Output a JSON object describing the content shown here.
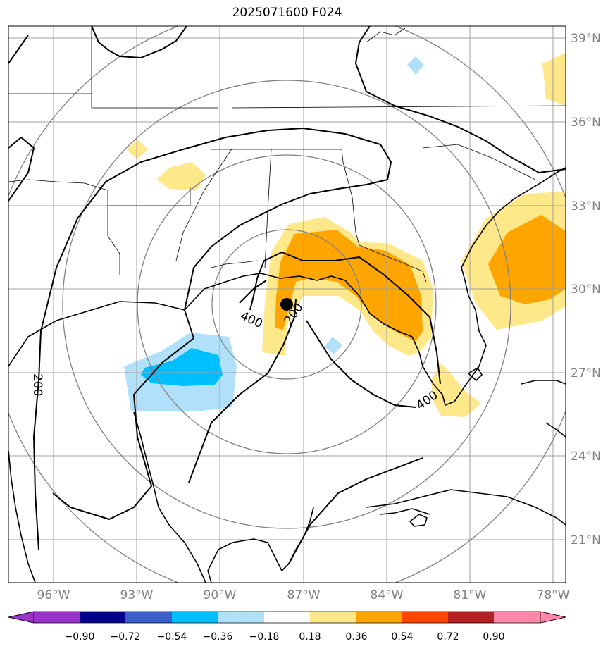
{
  "title": "2025071600 F024",
  "map": {
    "lon_labels": [
      "96°W",
      "93°W",
      "90°W",
      "87°W",
      "84°W",
      "81°W",
      "78°W"
    ],
    "lat_labels": [
      "39°N",
      "36°N",
      "33°N",
      "30°N",
      "27°N",
      "24°N",
      "21°N"
    ],
    "contour_labels": [
      "200",
      "400",
      "200",
      "400"
    ],
    "center_marker": "storm-center",
    "colors": {
      "grid": "#a0a0a0",
      "range_rings": "#808080",
      "coast": "#000000"
    }
  },
  "colorbar": {
    "ticks": [
      "−0.90",
      "−0.72",
      "−0.54",
      "−0.36",
      "−0.18",
      "0.18",
      "0.36",
      "0.54",
      "0.72",
      "0.90"
    ],
    "colors": [
      "#9933cc",
      "#00008b",
      "#3a5fcd",
      "#00bfff",
      "#b0e0fa",
      "#ffffff",
      "#ffe88a",
      "#ffa500",
      "#ff4500",
      "#b22222",
      "#ff88aa"
    ]
  }
}
